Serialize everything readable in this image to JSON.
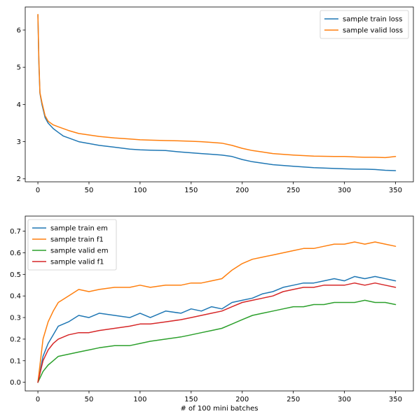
{
  "chart_data": [
    {
      "type": "line",
      "xlim": [
        -12.4,
        367.5
      ],
      "ylim": [
        1.92,
        6.62
      ],
      "xticks": [
        0,
        50,
        100,
        150,
        200,
        250,
        300,
        350
      ],
      "xtick_labels": [
        "0",
        "50",
        "100",
        "150",
        "200",
        "250",
        "300",
        "350"
      ],
      "yticks": [
        2,
        3,
        4,
        5,
        6
      ],
      "ytick_labels": [
        "2",
        "3",
        "4",
        "5",
        "6"
      ],
      "xlabel": "",
      "legend_position": "top-right",
      "grid": false,
      "series": [
        {
          "name": "sample train loss",
          "color": "#1f77b4",
          "x": [
            0,
            1,
            2,
            4,
            7,
            10,
            15,
            20,
            25,
            30,
            40,
            50,
            60,
            75,
            90,
            100,
            110,
            125,
            140,
            150,
            160,
            170,
            180,
            190,
            200,
            210,
            220,
            230,
            250,
            270,
            290,
            300,
            310,
            320,
            330,
            340,
            350
          ],
          "y": [
            6.4,
            5.1,
            4.3,
            4.0,
            3.65,
            3.5,
            3.35,
            3.25,
            3.15,
            3.1,
            3.0,
            2.95,
            2.9,
            2.85,
            2.8,
            2.78,
            2.77,
            2.76,
            2.72,
            2.7,
            2.68,
            2.66,
            2.64,
            2.6,
            2.52,
            2.46,
            2.42,
            2.38,
            2.34,
            2.3,
            2.28,
            2.27,
            2.26,
            2.26,
            2.25,
            2.23,
            2.22
          ]
        },
        {
          "name": "sample valid loss",
          "color": "#ff7f0e",
          "x": [
            0,
            1,
            2,
            4,
            7,
            10,
            15,
            20,
            25,
            30,
            40,
            50,
            60,
            75,
            90,
            100,
            110,
            125,
            140,
            150,
            160,
            170,
            180,
            190,
            200,
            210,
            220,
            230,
            250,
            270,
            290,
            300,
            310,
            320,
            330,
            340,
            350
          ],
          "y": [
            6.42,
            5.2,
            4.32,
            4.05,
            3.7,
            3.55,
            3.45,
            3.4,
            3.35,
            3.3,
            3.22,
            3.18,
            3.14,
            3.1,
            3.07,
            3.05,
            3.04,
            3.03,
            3.02,
            3.01,
            3.0,
            2.98,
            2.96,
            2.9,
            2.82,
            2.76,
            2.72,
            2.68,
            2.64,
            2.61,
            2.6,
            2.6,
            2.59,
            2.58,
            2.58,
            2.57,
            2.6
          ]
        }
      ]
    },
    {
      "type": "line",
      "xlim": [
        -12.4,
        367.5
      ],
      "ylim": [
        -0.04,
        0.77
      ],
      "xticks": [
        0,
        50,
        100,
        150,
        200,
        250,
        300,
        350
      ],
      "xtick_labels": [
        "0",
        "50",
        "100",
        "150",
        "200",
        "250",
        "300",
        "350"
      ],
      "yticks": [
        0.0,
        0.1,
        0.2,
        0.3,
        0.4,
        0.5,
        0.6,
        0.7
      ],
      "ytick_labels": [
        "0.0",
        "0.1",
        "0.2",
        "0.3",
        "0.4",
        "0.5",
        "0.6",
        "0.7"
      ],
      "xlabel": "# of 100 mini batches",
      "legend_position": "top-left",
      "grid": false,
      "series": [
        {
          "name": "sample train em",
          "color": "#1f77b4",
          "x": [
            0,
            5,
            10,
            15,
            20,
            30,
            40,
            50,
            60,
            75,
            90,
            100,
            110,
            125,
            140,
            150,
            160,
            170,
            180,
            190,
            200,
            210,
            220,
            230,
            240,
            250,
            260,
            270,
            280,
            290,
            300,
            310,
            320,
            330,
            340,
            350
          ],
          "y": [
            0.0,
            0.12,
            0.18,
            0.22,
            0.26,
            0.28,
            0.31,
            0.3,
            0.32,
            0.31,
            0.3,
            0.32,
            0.3,
            0.33,
            0.32,
            0.34,
            0.33,
            0.35,
            0.34,
            0.37,
            0.38,
            0.39,
            0.41,
            0.42,
            0.44,
            0.45,
            0.46,
            0.46,
            0.47,
            0.48,
            0.47,
            0.49,
            0.48,
            0.49,
            0.48,
            0.47
          ]
        },
        {
          "name": "sample train f1",
          "color": "#ff7f0e",
          "x": [
            0,
            5,
            10,
            15,
            20,
            30,
            40,
            50,
            60,
            75,
            90,
            100,
            110,
            125,
            140,
            150,
            160,
            170,
            180,
            190,
            200,
            210,
            220,
            230,
            240,
            250,
            260,
            270,
            280,
            290,
            300,
            310,
            320,
            330,
            340,
            350
          ],
          "y": [
            0.0,
            0.2,
            0.28,
            0.33,
            0.37,
            0.4,
            0.43,
            0.42,
            0.43,
            0.44,
            0.44,
            0.45,
            0.44,
            0.45,
            0.45,
            0.46,
            0.46,
            0.47,
            0.48,
            0.52,
            0.55,
            0.57,
            0.58,
            0.59,
            0.6,
            0.61,
            0.62,
            0.62,
            0.63,
            0.64,
            0.64,
            0.65,
            0.64,
            0.65,
            0.64,
            0.63
          ]
        },
        {
          "name": "sample valid em",
          "color": "#2ca02c",
          "x": [
            0,
            5,
            10,
            15,
            20,
            30,
            40,
            50,
            60,
            75,
            90,
            100,
            110,
            125,
            140,
            150,
            160,
            170,
            180,
            190,
            200,
            210,
            220,
            230,
            240,
            250,
            260,
            270,
            280,
            290,
            300,
            310,
            320,
            330,
            340,
            350
          ],
          "y": [
            0.0,
            0.05,
            0.08,
            0.1,
            0.12,
            0.13,
            0.14,
            0.15,
            0.16,
            0.17,
            0.17,
            0.18,
            0.19,
            0.2,
            0.21,
            0.22,
            0.23,
            0.24,
            0.25,
            0.27,
            0.29,
            0.31,
            0.32,
            0.33,
            0.34,
            0.35,
            0.35,
            0.36,
            0.36,
            0.37,
            0.37,
            0.37,
            0.38,
            0.37,
            0.37,
            0.36
          ]
        },
        {
          "name": "sample valid f1",
          "color": "#d62728",
          "x": [
            0,
            5,
            10,
            15,
            20,
            30,
            40,
            50,
            60,
            75,
            90,
            100,
            110,
            125,
            140,
            150,
            160,
            170,
            180,
            190,
            200,
            210,
            220,
            230,
            240,
            250,
            260,
            270,
            280,
            290,
            300,
            310,
            320,
            330,
            340,
            350
          ],
          "y": [
            0.0,
            0.1,
            0.15,
            0.18,
            0.2,
            0.22,
            0.23,
            0.23,
            0.24,
            0.25,
            0.26,
            0.27,
            0.27,
            0.28,
            0.29,
            0.3,
            0.31,
            0.32,
            0.33,
            0.35,
            0.37,
            0.38,
            0.39,
            0.4,
            0.42,
            0.43,
            0.44,
            0.44,
            0.45,
            0.45,
            0.45,
            0.46,
            0.45,
            0.46,
            0.45,
            0.44
          ]
        }
      ]
    }
  ]
}
